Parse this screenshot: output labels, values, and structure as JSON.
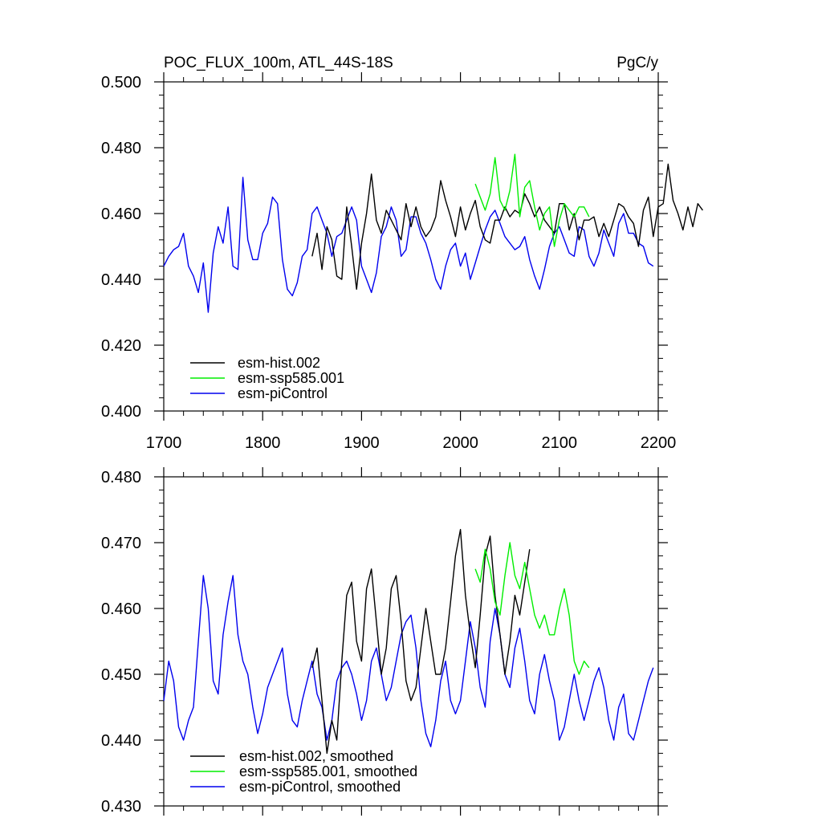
{
  "colors": {
    "hist": "#000000",
    "ssp585": "#00ee00",
    "picontrol": "#0000ee",
    "axis": "#000000",
    "background": "#ffffff"
  },
  "chart_data": [
    {
      "type": "line",
      "title": "POC_FLUX_100m, ATL_44S-18S",
      "units": "PgC/y",
      "xlim": [
        1700,
        2200
      ],
      "ylim": [
        0.4,
        0.5
      ],
      "xticks": [
        1700,
        1800,
        1900,
        2000,
        2100,
        2200
      ],
      "xtick_labels": [
        "1700",
        "1800",
        "1900",
        "2000",
        "2100",
        "2200"
      ],
      "yticks": [
        0.4,
        0.42,
        0.44,
        0.46,
        0.48,
        0.5
      ],
      "ytick_labels": [
        "0.400",
        "0.420",
        "0.440",
        "0.460",
        "0.480",
        "0.500"
      ],
      "legend_position": "bottom-left",
      "series": [
        {
          "name": "esm-hist.002",
          "color": "#000000",
          "x_start": 1850,
          "x_step": 5,
          "values": [
            0.447,
            0.454,
            0.443,
            0.456,
            0.452,
            0.441,
            0.44,
            0.462,
            0.45,
            0.437,
            0.451,
            0.46,
            0.472,
            0.458,
            0.454,
            0.461,
            0.458,
            0.455,
            0.452,
            0.463,
            0.456,
            0.462,
            0.456,
            0.453,
            0.455,
            0.459,
            0.47,
            0.464,
            0.459,
            0.453,
            0.462,
            0.455,
            0.46,
            0.464,
            0.456,
            0.452,
            0.451,
            0.458,
            0.458,
            0.462,
            0.459,
            0.461,
            0.46,
            0.466,
            0.463,
            0.459,
            0.462,
            0.458,
            0.456,
            0.454,
            0.463,
            0.463,
            0.455,
            0.46,
            0.452,
            0.458,
            0.458,
            0.459,
            0.453,
            0.457,
            0.453,
            0.458,
            0.463,
            0.462,
            0.459,
            0.457,
            0.45,
            0.461,
            0.465,
            0.453,
            0.462,
            0.463,
            0.475,
            0.464,
            0.46,
            0.455,
            0.462,
            0.456,
            0.463,
            0.461
          ]
        },
        {
          "name": "esm-ssp585.001",
          "color": "#00ee00",
          "x_start": 2015,
          "x_step": 5,
          "values": [
            0.469,
            0.465,
            0.461,
            0.466,
            0.477,
            0.464,
            0.461,
            0.467,
            0.478,
            0.459,
            0.468,
            0.47,
            0.462,
            0.455,
            0.46,
            0.462,
            0.45,
            0.458,
            0.463,
            0.461,
            0.459,
            0.462,
            0.462,
            0.459
          ]
        },
        {
          "name": "esm-piControl",
          "color": "#0000ee",
          "x_start": 1700,
          "x_step": 5,
          "values": [
            0.444,
            0.447,
            0.449,
            0.45,
            0.454,
            0.444,
            0.441,
            0.436,
            0.445,
            0.43,
            0.448,
            0.456,
            0.451,
            0.462,
            0.444,
            0.443,
            0.471,
            0.452,
            0.446,
            0.446,
            0.454,
            0.457,
            0.465,
            0.463,
            0.446,
            0.437,
            0.435,
            0.439,
            0.447,
            0.449,
            0.46,
            0.462,
            0.458,
            0.454,
            0.447,
            0.453,
            0.454,
            0.458,
            0.462,
            0.458,
            0.444,
            0.44,
            0.436,
            0.442,
            0.453,
            0.456,
            0.462,
            0.458,
            0.447,
            0.449,
            0.459,
            0.459,
            0.454,
            0.451,
            0.446,
            0.44,
            0.437,
            0.444,
            0.449,
            0.451,
            0.444,
            0.448,
            0.44,
            0.445,
            0.45,
            0.455,
            0.459,
            0.461,
            0.457,
            0.453,
            0.451,
            0.449,
            0.45,
            0.453,
            0.446,
            0.441,
            0.437,
            0.443,
            0.45,
            0.454,
            0.456,
            0.452,
            0.448,
            0.447,
            0.456,
            0.455,
            0.447,
            0.444,
            0.448,
            0.455,
            0.451,
            0.447,
            0.457,
            0.46,
            0.454,
            0.454,
            0.451,
            0.45,
            0.445,
            0.444
          ]
        }
      ]
    },
    {
      "type": "line",
      "title": "",
      "xlim": [
        1700,
        2200
      ],
      "ylim": [
        0.43,
        0.48
      ],
      "xticks": [
        1700,
        1800,
        1900,
        2000,
        2100,
        2200
      ],
      "yticks": [
        0.43,
        0.44,
        0.45,
        0.46,
        0.47,
        0.48
      ],
      "ytick_labels": [
        "0.430",
        "0.440",
        "0.450",
        "0.460",
        "0.470",
        "0.480"
      ],
      "legend_position": "bottom-left",
      "series": [
        {
          "name": "esm-hist.002, smoothed",
          "color": "#000000",
          "x_start": 1850,
          "x_step": 5,
          "values": [
            0.451,
            0.454,
            0.446,
            0.438,
            0.443,
            0.44,
            0.452,
            0.462,
            0.464,
            0.455,
            0.452,
            0.463,
            0.466,
            0.458,
            0.45,
            0.454,
            0.463,
            0.465,
            0.458,
            0.449,
            0.446,
            0.448,
            0.454,
            0.46,
            0.455,
            0.45,
            0.45,
            0.454,
            0.461,
            0.468,
            0.472,
            0.462,
            0.456,
            0.451,
            0.459,
            0.468,
            0.471,
            0.462,
            0.456,
            0.45,
            0.455,
            0.462,
            0.459,
            0.464,
            0.469
          ]
        },
        {
          "name": "esm-ssp585.001, smoothed",
          "color": "#00ee00",
          "x_start": 2015,
          "x_step": 5,
          "values": [
            0.466,
            0.464,
            0.469,
            0.466,
            0.461,
            0.459,
            0.465,
            0.47,
            0.465,
            0.463,
            0.467,
            0.463,
            0.459,
            0.457,
            0.459,
            0.456,
            0.456,
            0.46,
            0.463,
            0.459,
            0.452,
            0.45,
            0.452,
            0.451
          ]
        },
        {
          "name": "esm-piControl, smoothed",
          "color": "#0000ee",
          "x_start": 1700,
          "x_step": 5,
          "values": [
            0.446,
            0.452,
            0.449,
            0.442,
            0.44,
            0.443,
            0.445,
            0.455,
            0.465,
            0.46,
            0.449,
            0.447,
            0.456,
            0.461,
            0.465,
            0.456,
            0.452,
            0.45,
            0.445,
            0.441,
            0.444,
            0.448,
            0.45,
            0.452,
            0.454,
            0.447,
            0.443,
            0.442,
            0.446,
            0.449,
            0.452,
            0.447,
            0.445,
            0.44,
            0.443,
            0.449,
            0.451,
            0.452,
            0.45,
            0.447,
            0.443,
            0.446,
            0.452,
            0.454,
            0.45,
            0.446,
            0.448,
            0.452,
            0.456,
            0.458,
            0.459,
            0.454,
            0.446,
            0.441,
            0.439,
            0.443,
            0.449,
            0.452,
            0.446,
            0.444,
            0.446,
            0.452,
            0.458,
            0.454,
            0.448,
            0.445,
            0.455,
            0.46,
            0.456,
            0.45,
            0.448,
            0.454,
            0.457,
            0.452,
            0.446,
            0.444,
            0.45,
            0.453,
            0.449,
            0.446,
            0.44,
            0.442,
            0.446,
            0.45,
            0.446,
            0.443,
            0.446,
            0.449,
            0.451,
            0.448,
            0.443,
            0.44,
            0.445,
            0.447,
            0.441,
            0.44,
            0.443,
            0.446,
            0.449,
            0.451
          ]
        }
      ]
    }
  ]
}
